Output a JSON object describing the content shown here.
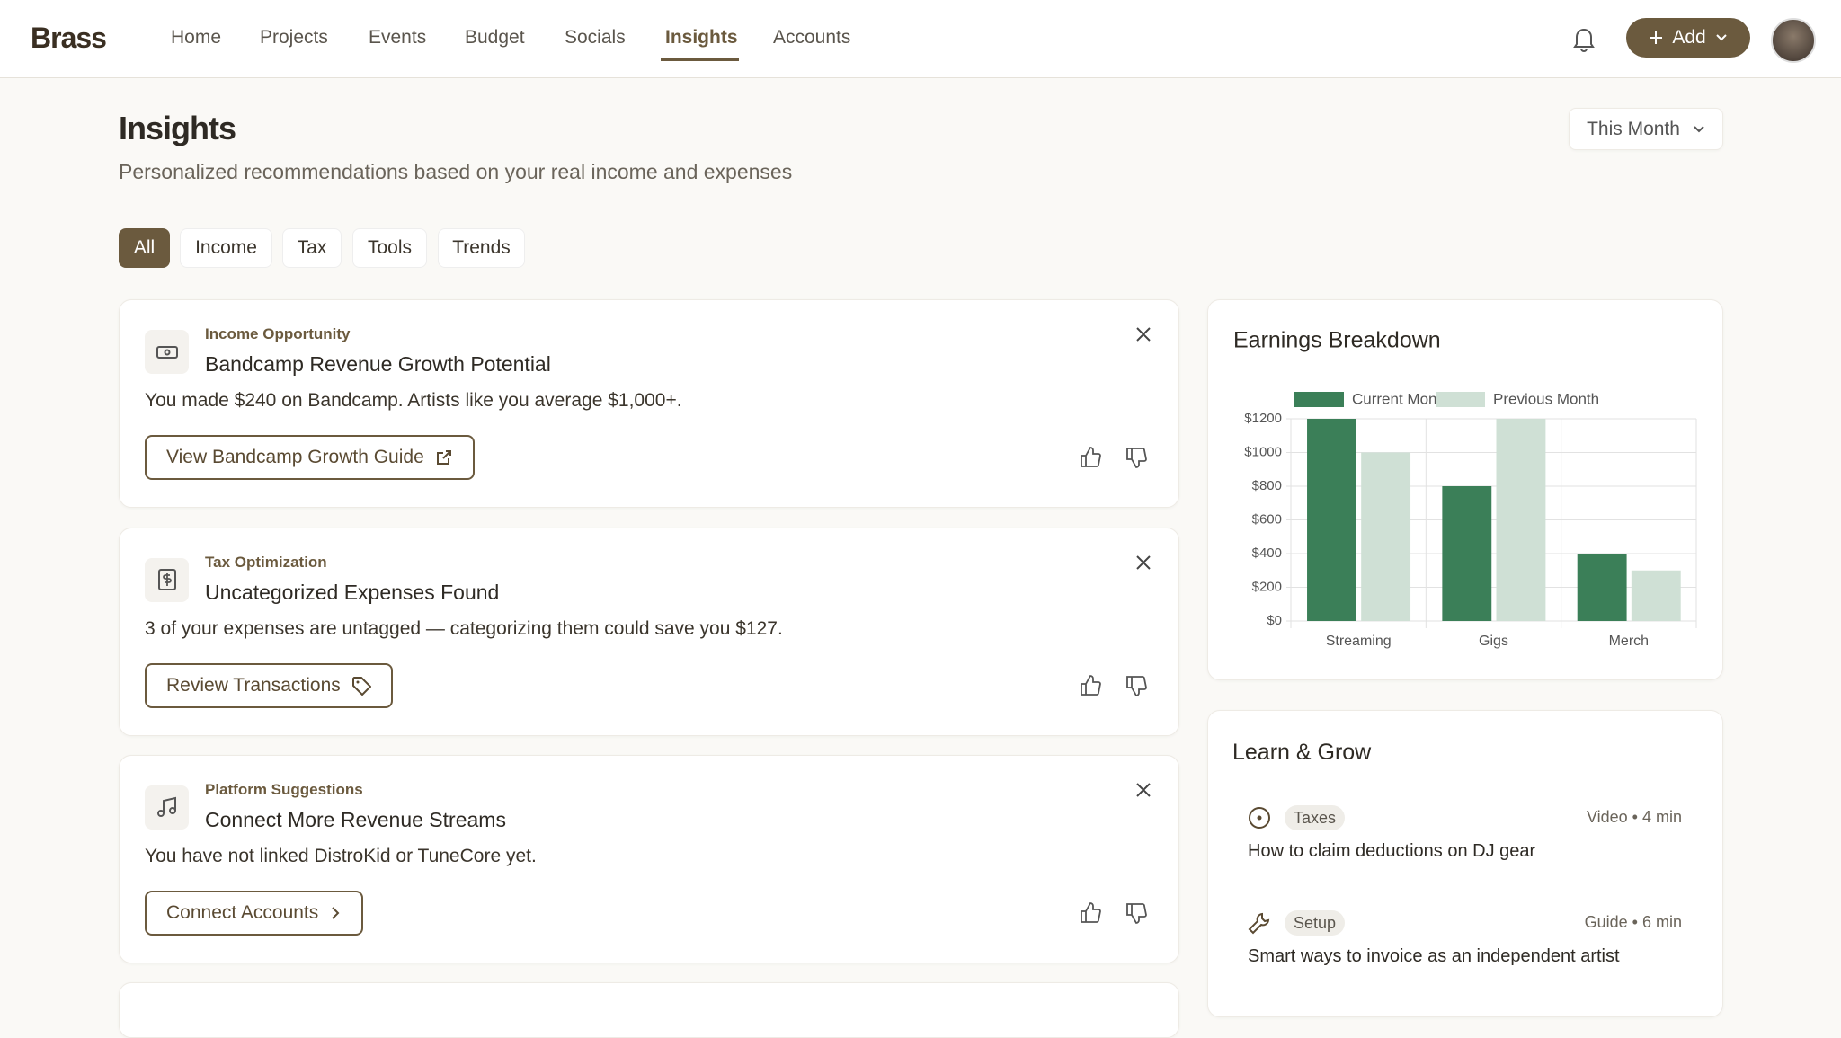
{
  "nav": {
    "logo": "Brass",
    "items": [
      "Home",
      "Projects",
      "Events",
      "Budget",
      "Socials",
      "Insights",
      "Accounts"
    ],
    "active": "Insights",
    "add": "Add"
  },
  "header": {
    "title": "Insights",
    "subtitle": "Personalized recommendations based on your real income and expenses",
    "period": "This Month"
  },
  "filters": {
    "items": [
      "All",
      "Income",
      "Tax",
      "Tools",
      "Trends"
    ],
    "active": "All"
  },
  "cards": [
    {
      "category": "Income Opportunity",
      "title": "Bandcamp Revenue Growth Potential",
      "text": "You made $240 on Bandcamp. Artists like you average $1,000+.",
      "action": "View Bandcamp Growth Guide"
    },
    {
      "category": "Tax Optimization",
      "title": "Uncategorized Expenses Found",
      "text": "3 of your expenses are untagged — categorizing them could save you $127.",
      "action": "Review Transactions"
    },
    {
      "category": "Platform Suggestions",
      "title": "Connect More Revenue Streams",
      "text": "You have not linked DistroKid or TuneCore yet.",
      "action": "Connect Accounts"
    }
  ],
  "chart_data": {
    "type": "bar",
    "title": "Earnings Breakdown",
    "categories": [
      "Streaming",
      "Gigs",
      "Merch"
    ],
    "series": [
      {
        "name": "Current Month",
        "color": "#3b7f58",
        "values": [
          1200,
          800,
          400
        ]
      },
      {
        "name": "Previous Month",
        "color": "#cfe0d5",
        "values": [
          1000,
          1200,
          300
        ]
      }
    ],
    "ylim": [
      0,
      1200
    ],
    "yticks": [
      {
        "value": 0,
        "label": "$0"
      },
      {
        "value": 200,
        "label": "$200"
      },
      {
        "value": 400,
        "label": "$400"
      },
      {
        "value": 600,
        "label": "$600"
      },
      {
        "value": 800,
        "label": "$800"
      },
      {
        "value": 1000,
        "label": "$1000"
      },
      {
        "value": 1200,
        "label": "$1200"
      }
    ],
    "grid": true,
    "legend": "top"
  },
  "learn": {
    "title": "Learn & Grow",
    "items": [
      {
        "tag": "Taxes",
        "meta": "Video • 4 min",
        "title": "How to claim deductions on DJ gear"
      },
      {
        "tag": "Setup",
        "meta": "Guide • 6 min",
        "title": "Smart ways to invoice as an independent artist"
      }
    ]
  }
}
